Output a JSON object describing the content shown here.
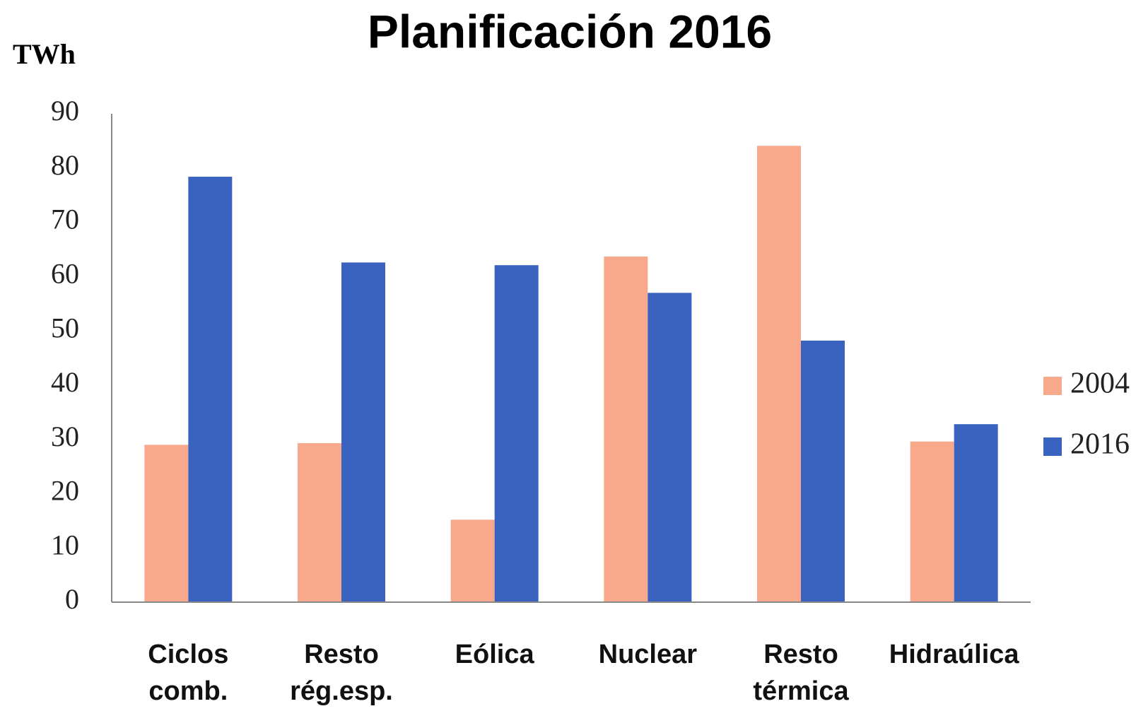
{
  "chart_data": {
    "type": "bar",
    "title": "Planificación 2016",
    "y_label": "TWh",
    "categories": [
      "Ciclos comb.",
      "Resto rég.esp.",
      "Eólica",
      "Nuclear",
      "Resto térmica",
      "Hidraúlica"
    ],
    "series": [
      {
        "name": "2004",
        "color": "#f9a98b",
        "values": [
          29.0,
          29.3,
          15.2,
          63.7,
          84.1,
          29.6
        ]
      },
      {
        "name": "2016",
        "color": "#3a63c0",
        "values": [
          78.4,
          62.6,
          62.1,
          57.0,
          48.2,
          32.8
        ]
      }
    ],
    "ylim": [
      0,
      90
    ],
    "yticks": [
      0,
      10,
      20,
      30,
      40,
      50,
      60,
      70,
      80,
      90
    ],
    "grid": false,
    "legend": "right"
  }
}
